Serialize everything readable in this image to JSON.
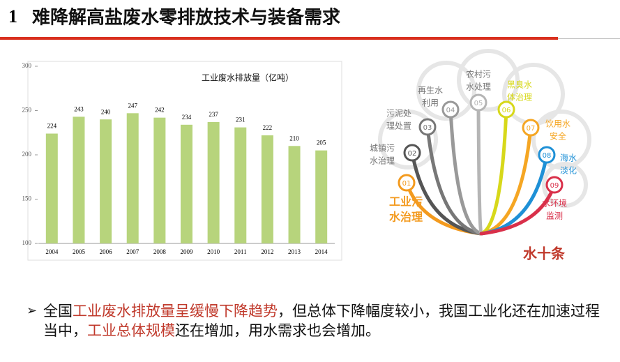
{
  "header": {
    "number": "1",
    "title": "难降解高盐废水零排放技术与装备需求"
  },
  "chart_data": {
    "type": "bar",
    "title": "工业废水排放量（亿吨）",
    "categories": [
      "2004",
      "2005",
      "2006",
      "2007",
      "2008",
      "2009",
      "2010",
      "2011",
      "2012",
      "2013",
      "2014"
    ],
    "values": [
      224,
      243,
      240,
      247,
      242,
      234,
      237,
      231,
      222,
      210,
      205
    ],
    "color": "#b7d47c",
    "ylim": [
      100,
      300
    ],
    "yticks": [
      100,
      150,
      200,
      250,
      300
    ],
    "grid": false
  },
  "diagram": {
    "center": "水十条",
    "nodes": [
      {
        "num": "01",
        "lines": [
          "工业污",
          "水治理"
        ],
        "color": "#f39a1e"
      },
      {
        "num": "02",
        "lines": [
          "城镇污",
          "水治理"
        ],
        "color": "#555555"
      },
      {
        "num": "03",
        "lines": [
          "污泥处",
          "理处置"
        ],
        "color": "#777777"
      },
      {
        "num": "04",
        "lines": [
          "再生水",
          "利用"
        ],
        "color": "#999999"
      },
      {
        "num": "05",
        "lines": [
          "农村污",
          "水处理"
        ],
        "color": "#b5b5b5"
      },
      {
        "num": "06",
        "lines": [
          "黑臭水",
          "体治理"
        ],
        "color": "#d7d81a"
      },
      {
        "num": "07",
        "lines": [
          "饮用水",
          "安全"
        ],
        "color": "#f5a623"
      },
      {
        "num": "08",
        "lines": [
          "海水",
          "淡化"
        ],
        "color": "#1e90d6"
      },
      {
        "num": "09",
        "lines": [
          "水环境",
          "监测"
        ],
        "color": "#d9304a"
      }
    ]
  },
  "bullet": {
    "segments": [
      {
        "text": "全国"
      },
      {
        "text": "工业废水排放量呈缓慢下降趋势",
        "color": "#c0392b"
      },
      {
        "text": "，但总体下降幅度较小，我国工业化还在加速过程当中，"
      },
      {
        "text": "工业总体规模",
        "color": "#c0392b"
      },
      {
        "text": "还在增加，用水需求也会增加。"
      }
    ]
  }
}
